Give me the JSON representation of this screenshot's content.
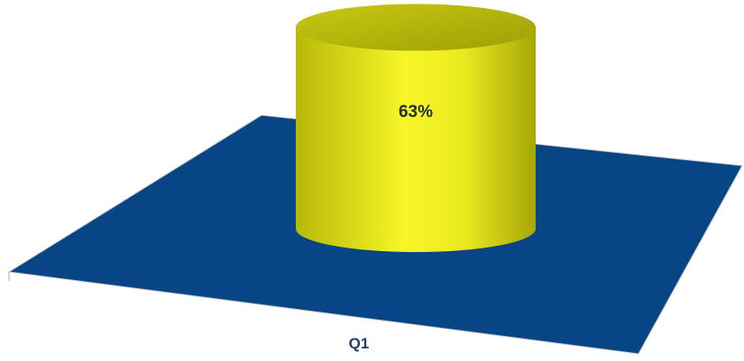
{
  "chart_data": {
    "type": "bar",
    "style": "3d-cylinder",
    "categories": [
      "Q1"
    ],
    "series": [
      {
        "values": [
          63
        ]
      }
    ],
    "value_format": "percent",
    "data_labels": [
      "63%"
    ],
    "ylim": [
      0,
      100
    ],
    "grid": false,
    "legend": "none",
    "colors": {
      "cylinder": "#d8d81a",
      "floor": "#084585"
    }
  }
}
